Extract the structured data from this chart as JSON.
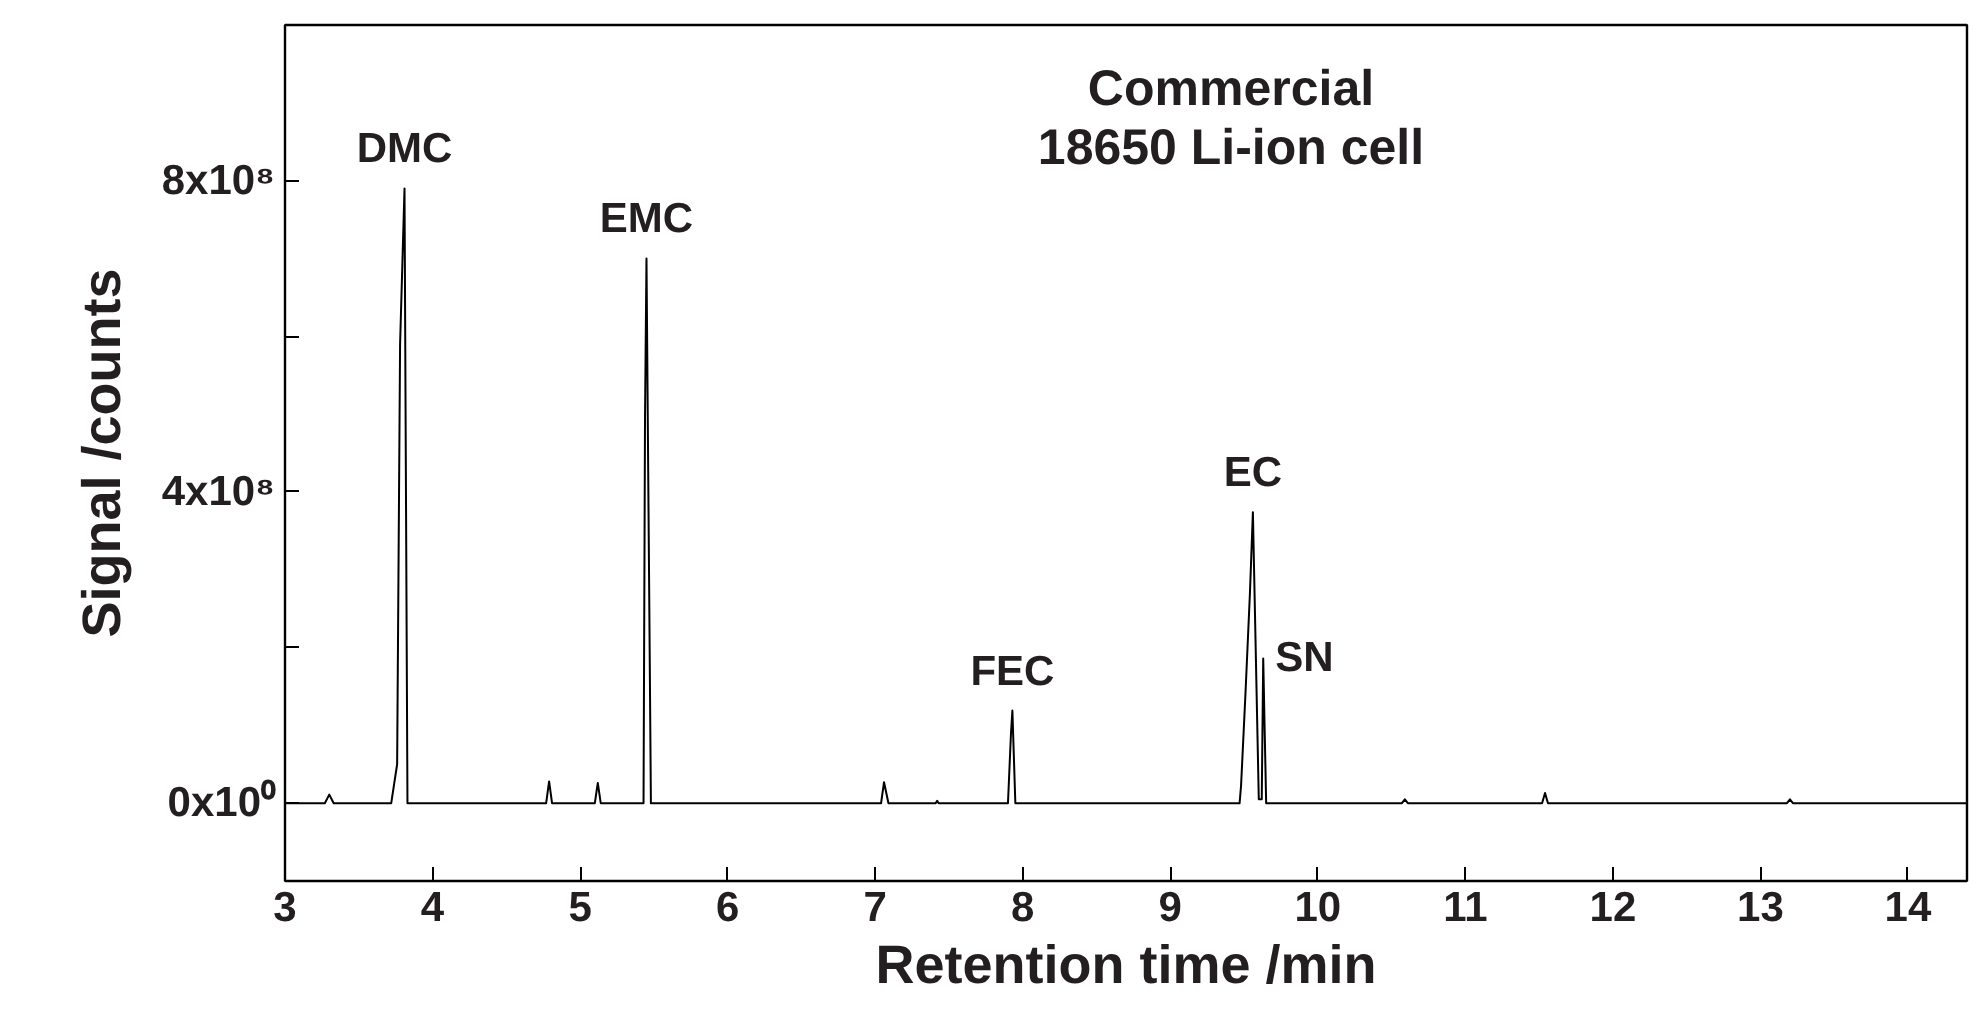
{
  "chart_data": {
    "type": "line",
    "title": "Commercial\n18650 Li-ion cell",
    "xlabel": "Retention time /min",
    "ylabel": "Signal /counts",
    "xlim": [
      3,
      14.4
    ],
    "xticks": [
      3,
      4,
      5,
      6,
      7,
      8,
      9,
      10,
      11,
      12,
      13,
      14
    ],
    "ylim": [
      -100000000,
      1000000000
    ],
    "yticks": [
      {
        "value": 0,
        "label": "0x10⁰"
      },
      {
        "value": 200000000,
        "label": null
      },
      {
        "value": 400000000,
        "label": "4x10⁸"
      },
      {
        "value": 600000000,
        "label": null
      },
      {
        "value": 800000000,
        "label": "8x10⁸"
      }
    ],
    "grid": false,
    "marker": "none",
    "line_style": "solid",
    "x": [
      3.0,
      3.27,
      3.3,
      3.33,
      3.72,
      3.76,
      3.78,
      3.81,
      3.83,
      4.77,
      4.79,
      4.81,
      5.1,
      5.12,
      5.14,
      5.43,
      5.44,
      5.45,
      5.48,
      7.04,
      7.06,
      7.09,
      7.41,
      7.42,
      7.43,
      7.9,
      7.92,
      7.93,
      7.95,
      9.47,
      9.48,
      9.51,
      9.54,
      9.56,
      9.6,
      9.62,
      9.63,
      9.65,
      10.57,
      10.59,
      10.61,
      11.52,
      11.54,
      11.56,
      13.18,
      13.2,
      13.22,
      14.4
    ],
    "series": [
      {
        "color": "#000000",
        "values": [
          0,
          0,
          11000000,
          0,
          0,
          50000000,
          590000000,
          790000000,
          0,
          0,
          28000000,
          0,
          0,
          26000000,
          0,
          0,
          495000000,
          700000000,
          0,
          0,
          27000000,
          0,
          0,
          3000000,
          0,
          0,
          88000000,
          119000000,
          0,
          0,
          23000000,
          142000000,
          270000000,
          374000000,
          5000000,
          5000000,
          186000000,
          0,
          0,
          5000000,
          0,
          0,
          13000000,
          0,
          0,
          5000000,
          0,
          0
        ]
      }
    ],
    "annotations": [
      {
        "text": "DMC",
        "x": 3.81,
        "y": 790000000
      },
      {
        "text": "EMC",
        "x": 5.45,
        "y": 700000000
      },
      {
        "text": "FEC",
        "x": 7.93,
        "y": 119000000
      },
      {
        "text": "EC",
        "x": 9.56,
        "y": 374000000
      },
      {
        "text": "SN",
        "x": 9.63,
        "y": 186000000
      }
    ]
  }
}
